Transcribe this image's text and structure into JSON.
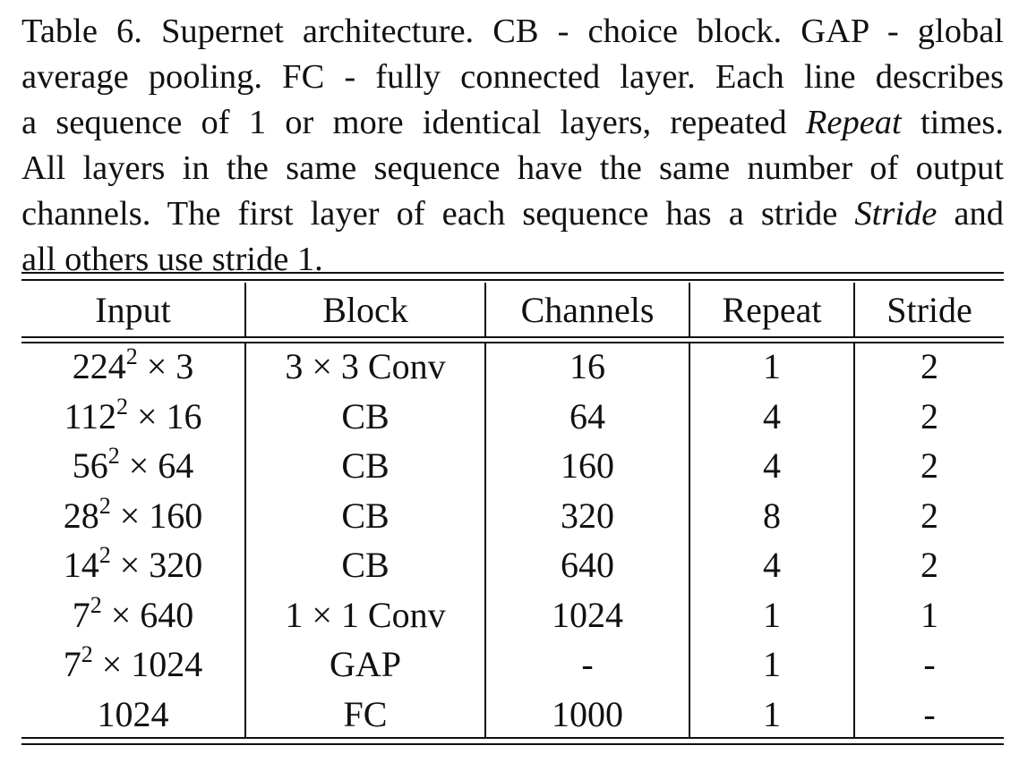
{
  "caption": {
    "line1": "Table 6. Supernet architecture.  CB - choice block.  GAP - global",
    "line2": "average pooling.  FC - fully connected layer.  Each line describes",
    "line3a": "a sequence of 1 or more identical layers, repeated ",
    "line3_em": "Repeat",
    "line3b": " times.",
    "line4": "All layers in the same sequence have the same number of output",
    "line5a": "channels.  The first layer of each sequence has a stride ",
    "line5_em": "Stride",
    "line5b": " and",
    "line6": "all others use stride 1."
  },
  "table": {
    "headers": [
      "Input",
      "Block",
      "Channels",
      "Repeat",
      "Stride"
    ],
    "rows": [
      {
        "input_base": "224",
        "input_exp": "2",
        "input_rest": " × 3",
        "block": "3 × 3 Conv",
        "channels": "16",
        "repeat": "1",
        "stride": "2"
      },
      {
        "input_base": "112",
        "input_exp": "2",
        "input_rest": " × 16",
        "block": "CB",
        "channels": "64",
        "repeat": "4",
        "stride": "2"
      },
      {
        "input_base": "56",
        "input_exp": "2",
        "input_rest": " × 64",
        "block": "CB",
        "channels": "160",
        "repeat": "4",
        "stride": "2"
      },
      {
        "input_base": "28",
        "input_exp": "2",
        "input_rest": " × 160",
        "block": "CB",
        "channels": "320",
        "repeat": "8",
        "stride": "2"
      },
      {
        "input_base": "14",
        "input_exp": "2",
        "input_rest": " × 320",
        "block": "CB",
        "channels": "640",
        "repeat": "4",
        "stride": "2"
      },
      {
        "input_base": "7",
        "input_exp": "2",
        "input_rest": " × 640",
        "block": "1 × 1 Conv",
        "channels": "1024",
        "repeat": "1",
        "stride": "1"
      },
      {
        "input_base": "7",
        "input_exp": "2",
        "input_rest": " × 1024",
        "block": "GAP",
        "channels": "-",
        "repeat": "1",
        "stride": "-"
      },
      {
        "input_base": "1024",
        "input_exp": "",
        "input_rest": "",
        "block": "FC",
        "channels": "1000",
        "repeat": "1",
        "stride": "-"
      }
    ]
  }
}
